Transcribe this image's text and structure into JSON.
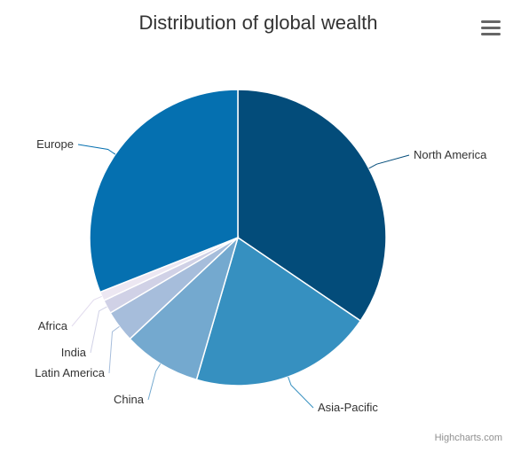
{
  "chart_data": {
    "type": "pie",
    "title": "Distribution of global wealth",
    "categories": [
      "North America",
      "Asia-Pacific",
      "China",
      "Latin America",
      "India",
      "Africa",
      "Europe"
    ],
    "values": [
      34.5,
      20.0,
      8.5,
      3.5,
      1.5,
      1.0,
      31.0
    ],
    "colors": [
      "#034c7a",
      "#3690c0",
      "#74a9cf",
      "#a6bddb",
      "#d0d1e6",
      "#ece7f2",
      "#0570b0"
    ],
    "start_angle": "top (12 o'clock), clockwise",
    "legend": "none (data labels with connectors)"
  },
  "menu": {
    "icon": "hamburger-menu-icon"
  },
  "credits": {
    "text": "Highcharts.com"
  }
}
